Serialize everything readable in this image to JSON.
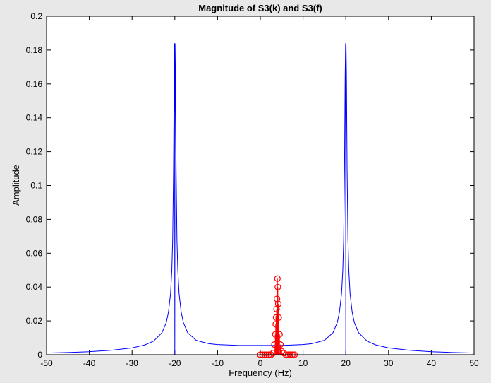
{
  "chart_data": {
    "type": "line",
    "title": "Magnitude of S3(k) and S3(f)",
    "xlabel": "Frequency (Hz)",
    "ylabel": "Amplitude",
    "xlim": [
      -50,
      50
    ],
    "ylim": [
      0,
      0.2
    ],
    "xticks": [
      -50,
      -40,
      -30,
      -20,
      -10,
      0,
      10,
      20,
      30,
      40,
      50
    ],
    "yticks": [
      0,
      0.02,
      0.04,
      0.06,
      0.08,
      0.1,
      0.12,
      0.14,
      0.16,
      0.18,
      0.2
    ],
    "grid": false,
    "series": [
      {
        "type": "line",
        "color": "#0000ff",
        "x": [
          -50,
          -45,
          -40,
          -35,
          -30,
          -27,
          -25,
          -23,
          -22,
          -21.5,
          -21,
          -20.7,
          -20.5,
          -20.3,
          -20.15,
          -20.05,
          -20,
          -19.95,
          -19.85,
          -19.7,
          -19.5,
          -19.3,
          -19,
          -18.5,
          -18,
          -17,
          -15,
          -12,
          -10,
          -5,
          0,
          5,
          10,
          12,
          15,
          17,
          18,
          18.5,
          19,
          19.3,
          19.5,
          19.7,
          19.85,
          19.95,
          20,
          20.05,
          20.15,
          20.3,
          20.5,
          20.7,
          21,
          21.5,
          22,
          23,
          25,
          27,
          30,
          35,
          40,
          45,
          50
        ],
        "values": [
          0.001,
          0.0013,
          0.0018,
          0.0026,
          0.004,
          0.0058,
          0.008,
          0.013,
          0.019,
          0.025,
          0.036,
          0.05,
          0.068,
          0.11,
          0.165,
          0.184,
          0,
          0.184,
          0.165,
          0.11,
          0.068,
          0.05,
          0.036,
          0.025,
          0.019,
          0.013,
          0.0085,
          0.0065,
          0.006,
          0.0055,
          0.0055,
          0.0055,
          0.006,
          0.0065,
          0.0085,
          0.013,
          0.019,
          0.025,
          0.036,
          0.05,
          0.068,
          0.11,
          0.165,
          0.184,
          0,
          0.184,
          0.165,
          0.11,
          0.068,
          0.05,
          0.036,
          0.025,
          0.019,
          0.013,
          0.008,
          0.0058,
          0.004,
          0.0026,
          0.0018,
          0.0013,
          0.001
        ]
      },
      {
        "type": "stem",
        "color": "#ff0000",
        "x": [
          0,
          0.5,
          1,
          1.5,
          2,
          2.5,
          3,
          3.3,
          3.5,
          3.6,
          3.7,
          3.8,
          3.9,
          4.0,
          4.1,
          4.2,
          4.3,
          4.5,
          4.7,
          5,
          5.5,
          6,
          6.5,
          7,
          7.5,
          8
        ],
        "values": [
          0,
          0,
          0,
          0,
          0,
          0,
          0.001,
          0.006,
          0.012,
          0.018,
          0.022,
          0.027,
          0.033,
          0.045,
          0.04,
          0.03,
          0.022,
          0.012,
          0.006,
          0.002,
          0.001,
          0,
          0,
          0,
          0,
          0
        ]
      }
    ]
  }
}
